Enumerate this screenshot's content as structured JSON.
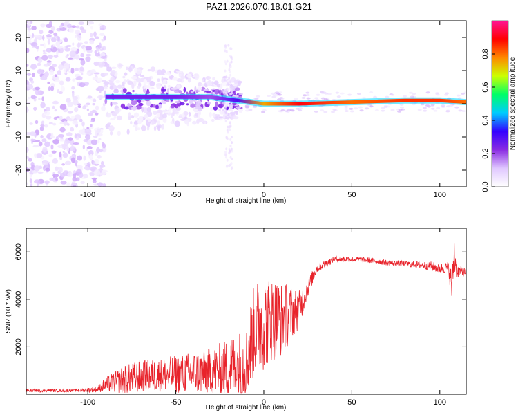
{
  "title": "PAZ1.2026.070.18.01.G21",
  "colors": {
    "snr_line": "#e8232b",
    "axis": "#000000",
    "background": "#ffffff"
  },
  "chart_data": [
    {
      "type": "heatmap",
      "name": "spectrogram",
      "xlabel": "Height of straight line (km)",
      "ylabel": "Frequency (Hz)",
      "xlim": [
        -135,
        115
      ],
      "ylim": [
        -25,
        25
      ],
      "x_ticks": [
        -100,
        -50,
        0,
        50,
        100
      ],
      "y_ticks": [
        -20,
        -10,
        0,
        10,
        20
      ],
      "colorbar": {
        "label": "Normalized spectral amplitude",
        "range": [
          0.0,
          1.0
        ],
        "ticks": [
          0.0,
          0.2,
          0.4,
          0.6,
          0.8
        ],
        "colormap": [
          "#ffffff",
          "#e0c8ff",
          "#8a2be2",
          "#3300ff",
          "#00ccff",
          "#00ff66",
          "#ccff00",
          "#ff8800",
          "#ff0000",
          "#ff1493"
        ]
      },
      "ridge": {
        "x": [
          -90,
          -70,
          -50,
          -30,
          -15,
          0,
          20,
          50,
          80,
          100,
          115
        ],
        "freq": [
          2,
          2,
          2,
          2,
          1,
          0,
          0,
          0.5,
          1,
          1,
          0.5
        ],
        "amplitude": [
          0.25,
          0.25,
          0.25,
          0.2,
          0.3,
          0.75,
          0.9,
          0.8,
          0.85,
          0.85,
          0.8
        ]
      }
    },
    {
      "type": "line",
      "name": "snr",
      "xlabel": "Height of straight line (km)",
      "ylabel": "SNR (10 * v/v)",
      "xlim": [
        -135,
        115
      ],
      "ylim": [
        0,
        7000
      ],
      "x_ticks": [
        -100,
        -50,
        0,
        50,
        100
      ],
      "y_ticks": [
        2000,
        4000,
        6000
      ],
      "envelope": {
        "x": [
          -135,
          -110,
          -95,
          -90,
          -80,
          -70,
          -60,
          -50,
          -40,
          -30,
          -20,
          -15,
          -10,
          -8,
          -5,
          0,
          5,
          10,
          15,
          20,
          25,
          30,
          40,
          50,
          60,
          70,
          80,
          90,
          95,
          100,
          105,
          107,
          108,
          110,
          115
        ],
        "mean": [
          150,
          150,
          200,
          400,
          600,
          750,
          800,
          850,
          900,
          950,
          1100,
          1200,
          1300,
          2000,
          2800,
          3000,
          3200,
          3200,
          3400,
          3600,
          4500,
          5300,
          5700,
          5700,
          5650,
          5550,
          5500,
          5450,
          5400,
          5300,
          5350,
          4500,
          5900,
          5200,
          5150
        ],
        "spread": [
          60,
          60,
          120,
          300,
          600,
          700,
          700,
          800,
          900,
          1000,
          1300,
          1500,
          1500,
          1800,
          2000,
          2000,
          1800,
          1600,
          1200,
          800,
          400,
          200,
          120,
          120,
          120,
          120,
          120,
          150,
          200,
          200,
          250,
          800,
          1000,
          300,
          150
        ]
      }
    }
  ]
}
